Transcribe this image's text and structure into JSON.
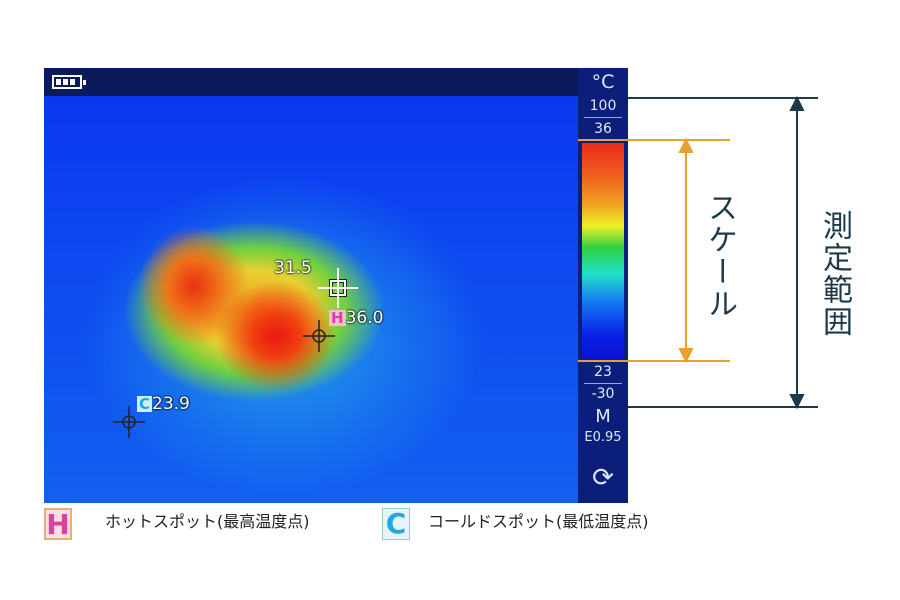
{
  "device": {
    "unit": "°C",
    "range_max": "100",
    "scale_max": "36",
    "scale_min": "23",
    "range_min": "-30",
    "mode": "M",
    "emissivity": "E0.95",
    "battery": "full"
  },
  "spots": {
    "center": "31.5",
    "hot_badge": "H",
    "hot": "36.0",
    "cold_badge": "C",
    "cold": "23.9"
  },
  "annotations": {
    "scale": "スケール",
    "measurement_range": "測定範囲"
  },
  "legend": {
    "hot_icon": "H",
    "hot_label": "ホットスポット(最高温度点)",
    "cold_icon": "C",
    "cold_label": "コールドスポット(最低温度点)"
  },
  "colors": {
    "annotation_range": "#1e3a48",
    "annotation_scale": "#e8a030",
    "hot": "#e0409a",
    "cold": "#20a8e0"
  }
}
